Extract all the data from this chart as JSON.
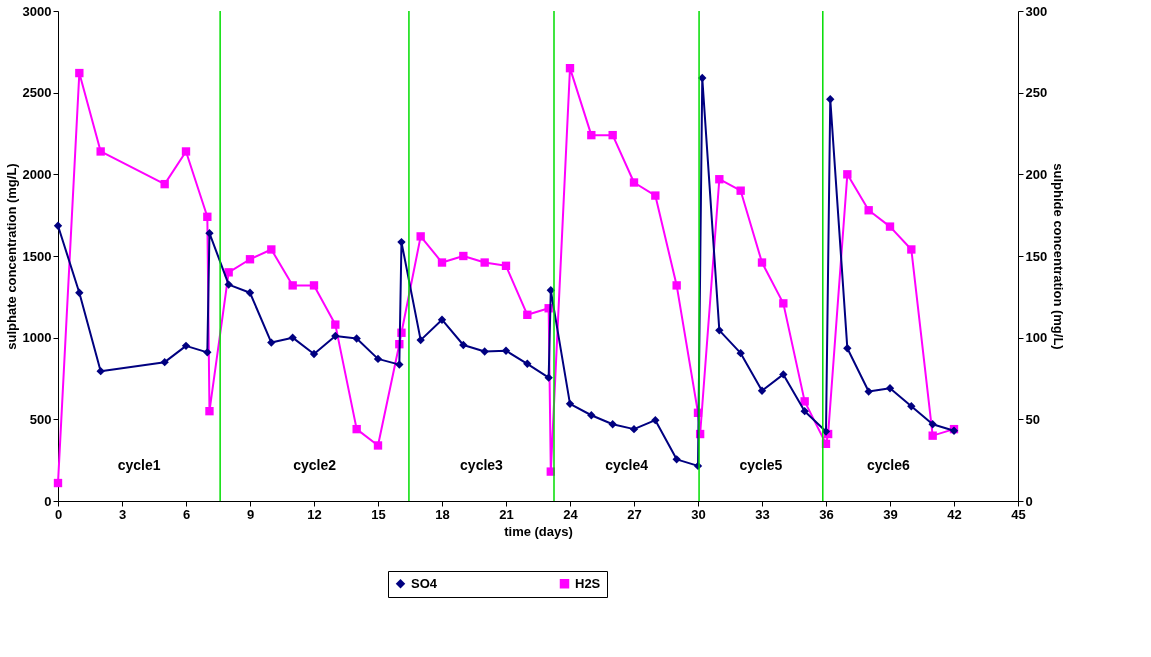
{
  "chart_data": {
    "type": "line",
    "xlabel": "time (days)",
    "ylabel": "sulphate concentration (mg/L)",
    "y2label": "sulphide concentration (mg/L)",
    "xlim": [
      0,
      45
    ],
    "xticks": [
      0,
      3,
      6,
      9,
      12,
      15,
      18,
      21,
      24,
      27,
      30,
      33,
      36,
      39,
      42,
      45
    ],
    "ylim": [
      0,
      3000
    ],
    "yticks": [
      0,
      500,
      1000,
      1500,
      2000,
      2500,
      3000
    ],
    "y2lim": [
      0,
      300
    ],
    "y2ticks": [
      0,
      50,
      100,
      150,
      200,
      250,
      300
    ],
    "grid": false,
    "legend": "bottom",
    "line_style": "solid",
    "series": [
      {
        "name": "SO4",
        "color": "#000080",
        "marker": "diamond",
        "x": [
          0,
          1,
          2,
          5,
          6,
          7,
          7.1,
          8,
          9,
          10,
          11,
          12,
          13,
          14,
          15,
          16,
          16.1,
          17,
          18,
          19,
          20,
          21,
          22,
          23,
          23.1,
          24,
          25,
          26,
          27,
          28,
          29,
          30,
          30.2,
          31,
          32,
          33,
          34,
          35,
          36,
          36.2,
          37,
          38,
          39,
          40,
          41,
          42
        ],
        "values": [
          1685,
          1275,
          795,
          850,
          950,
          910,
          1640,
          1325,
          1275,
          970,
          1000,
          900,
          1010,
          995,
          870,
          835,
          1585,
          985,
          1110,
          955,
          915,
          920,
          840,
          755,
          1290,
          595,
          525,
          470,
          440,
          495,
          255,
          215,
          2590,
          1045,
          905,
          675,
          775,
          550,
          425,
          2460,
          935,
          670,
          690,
          580,
          470,
          430
        ]
      },
      {
        "name": "H2S",
        "color": "#ff00ff",
        "marker": "square",
        "axis": "y2",
        "x": [
          0,
          1,
          2,
          5,
          6,
          7,
          7.1,
          8,
          9,
          10,
          11,
          12,
          13,
          14,
          15,
          16,
          16.1,
          17,
          18,
          19,
          20,
          21,
          22,
          23,
          23.1,
          24,
          25,
          26,
          27,
          28,
          29,
          30,
          30.1,
          31,
          32,
          33,
          34,
          35,
          36,
          36.1,
          37,
          38,
          39,
          40,
          41,
          42
        ],
        "values": [
          11,
          262,
          214,
          194,
          214,
          174,
          55,
          140,
          148,
          154,
          132,
          132,
          108,
          44,
          34,
          96,
          103,
          162,
          146,
          150,
          146,
          144,
          114,
          118,
          18,
          265,
          224,
          224,
          195,
          187,
          132,
          54,
          41,
          197,
          190,
          146,
          121,
          61,
          35,
          41,
          200,
          178,
          168,
          154,
          40,
          44
        ]
      }
    ],
    "ref_lines": [
      {
        "axis": "x",
        "value": 7.6,
        "color": "#00dd00"
      },
      {
        "axis": "x",
        "value": 16.45,
        "color": "#00dd00"
      },
      {
        "axis": "x",
        "value": 23.25,
        "color": "#00dd00"
      },
      {
        "axis": "x",
        "value": 30.05,
        "color": "#00dd00"
      },
      {
        "axis": "x",
        "value": 35.85,
        "color": "#00dd00"
      }
    ],
    "annotations": [
      "cycle1",
      "cycle2",
      "cycle3",
      "cycle4",
      "cycle5",
      "cycle6"
    ]
  }
}
